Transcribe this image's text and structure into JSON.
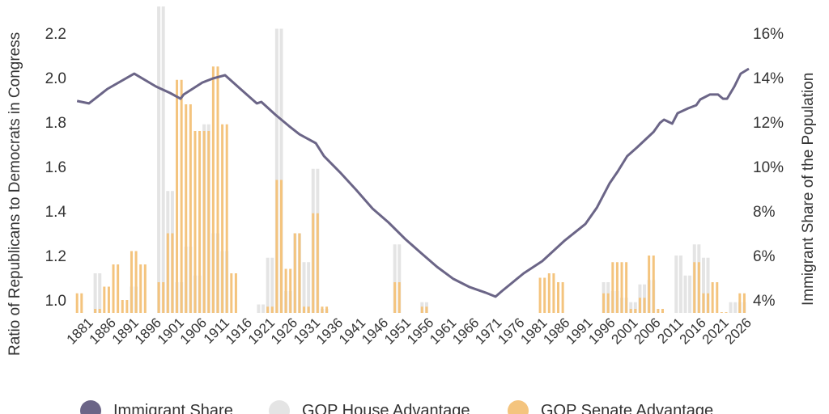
{
  "chart_data": {
    "type": "bar+line",
    "title": "",
    "ylabel": "Ratio of Republicans to Democrats in Congress",
    "y2label": "Immigrant Share of the Population",
    "ylim": [
      0.94,
      2.34
    ],
    "y2lim": [
      3.4,
      17.4
    ],
    "xlim": [
      1878,
      2026
    ],
    "grid": false,
    "legend_placement": "bottom",
    "x_ticks": [
      "1881",
      "1886",
      "1891",
      "1896",
      "1901",
      "1906",
      "1911",
      "1916",
      "1921",
      "1926",
      "1931",
      "1936",
      "1941",
      "1946",
      "1951",
      "1956",
      "1961",
      "1966",
      "1971",
      "1976",
      "1981",
      "1986",
      "1991",
      "1996",
      "2001",
      "2006",
      "2011",
      "2016",
      "2021",
      "2026"
    ],
    "y_ticks": [
      "1.0",
      "1.2",
      "1.4",
      "1.6",
      "1.8",
      "2.0",
      "2.2"
    ],
    "y2_ticks": [
      "4%",
      "6%",
      "8%",
      "10%",
      "12%",
      "14%",
      "16%"
    ],
    "colors": {
      "immigrant": "#6b6587",
      "house": "#e4e4e4",
      "senate": "#f4c47e"
    },
    "legend": [
      {
        "key": "immigrant",
        "label": "Immigrant Share"
      },
      {
        "key": "house",
        "label": "GOP House Advantage"
      },
      {
        "key": "senate",
        "label": "GOP Senate Advantage"
      }
    ],
    "immigrant_share": {
      "name": "Immigrant Share",
      "x": [
        1878,
        1880.6,
        1884.7,
        1890.6,
        1895.4,
        1898.5,
        1900.8,
        1901.5,
        1905.6,
        1907.9,
        1910.6,
        1914,
        1917.6,
        1918.6,
        1921.7,
        1924.7,
        1927,
        1930.6,
        1932.4,
        1935.9,
        1939.5,
        1943.1,
        1946.6,
        1950.2,
        1953.8,
        1957.3,
        1960.9,
        1964.5,
        1968,
        1970.2,
        1971.6,
        1976.4,
        1980.5,
        1985.3,
        1990,
        1992.5,
        1995.3,
        1997.1,
        1999.2,
        2001.4,
        2005,
        2006.4,
        2007.3,
        2009.1,
        2010.3,
        2012.6,
        2014.4,
        2015.3,
        2017.4,
        2019.2,
        2020.3,
        2021.2,
        2022.8,
        2024.2,
        2026
      ],
      "y": [
        12.95,
        12.84,
        13.49,
        14.18,
        13.6,
        13.31,
        13.05,
        13.24,
        13.78,
        13.96,
        14.11,
        13.49,
        12.84,
        12.91,
        12.33,
        11.82,
        11.45,
        11.05,
        10.47,
        9.75,
        8.95,
        8.11,
        7.49,
        6.76,
        6.11,
        5.49,
        4.95,
        4.58,
        4.33,
        4.15,
        4.4,
        5.2,
        5.75,
        6.65,
        7.42,
        8.15,
        9.24,
        9.78,
        10.47,
        10.87,
        11.56,
        11.96,
        12.11,
        11.93,
        12.4,
        12.62,
        12.76,
        13.02,
        13.24,
        13.24,
        13.05,
        13.05,
        13.6,
        14.18,
        14.4
      ]
    },
    "advantage": {
      "years": [
        1878,
        1882,
        1884,
        1886,
        1888,
        1890,
        1892,
        1896,
        1898,
        1900,
        1902,
        1904,
        1906,
        1908,
        1910,
        1912,
        1918,
        1920,
        1922,
        1924,
        1926,
        1928,
        1930,
        1932,
        1948,
        1954,
        1980,
        1982,
        1984,
        1994,
        1996,
        1998,
        2000,
        2002,
        2004,
        2006,
        2010,
        2012,
        2014,
        2016,
        2018,
        2020,
        2022,
        2024
      ],
      "house": [
        null,
        1.12,
        null,
        null,
        null,
        1.06,
        null,
        2.32,
        1.49,
        1.08,
        1.24,
        1.11,
        1.79,
        1.3,
        1.22,
        null,
        0.98,
        1.19,
        2.22,
        1.04,
        1.3,
        1.17,
        1.59,
        0.96,
        1.25,
        0.99,
        null,
        null,
        null,
        1.08,
        1.04,
        1.01,
        0.99,
        1.07,
        1.09,
        null,
        1.2,
        1.11,
        1.25,
        1.19,
        null,
        null,
        0.99,
        0.99
      ],
      "senate": [
        1.03,
        0.96,
        1.06,
        1.16,
        1.0,
        1.22,
        1.16,
        1.08,
        1.3,
        1.99,
        1.88,
        1.76,
        1.76,
        2.05,
        1.79,
        1.12,
        null,
        0.97,
        1.54,
        1.14,
        1.3,
        0.97,
        1.39,
        0.97,
        1.08,
        0.97,
        1.1,
        1.12,
        1.08,
        1.03,
        1.17,
        1.17,
        0.96,
        1.01,
        1.2,
        0.96,
        null,
        null,
        1.17,
        1.03,
        1.08,
        0.945,
        null,
        1.03
      ]
    }
  }
}
